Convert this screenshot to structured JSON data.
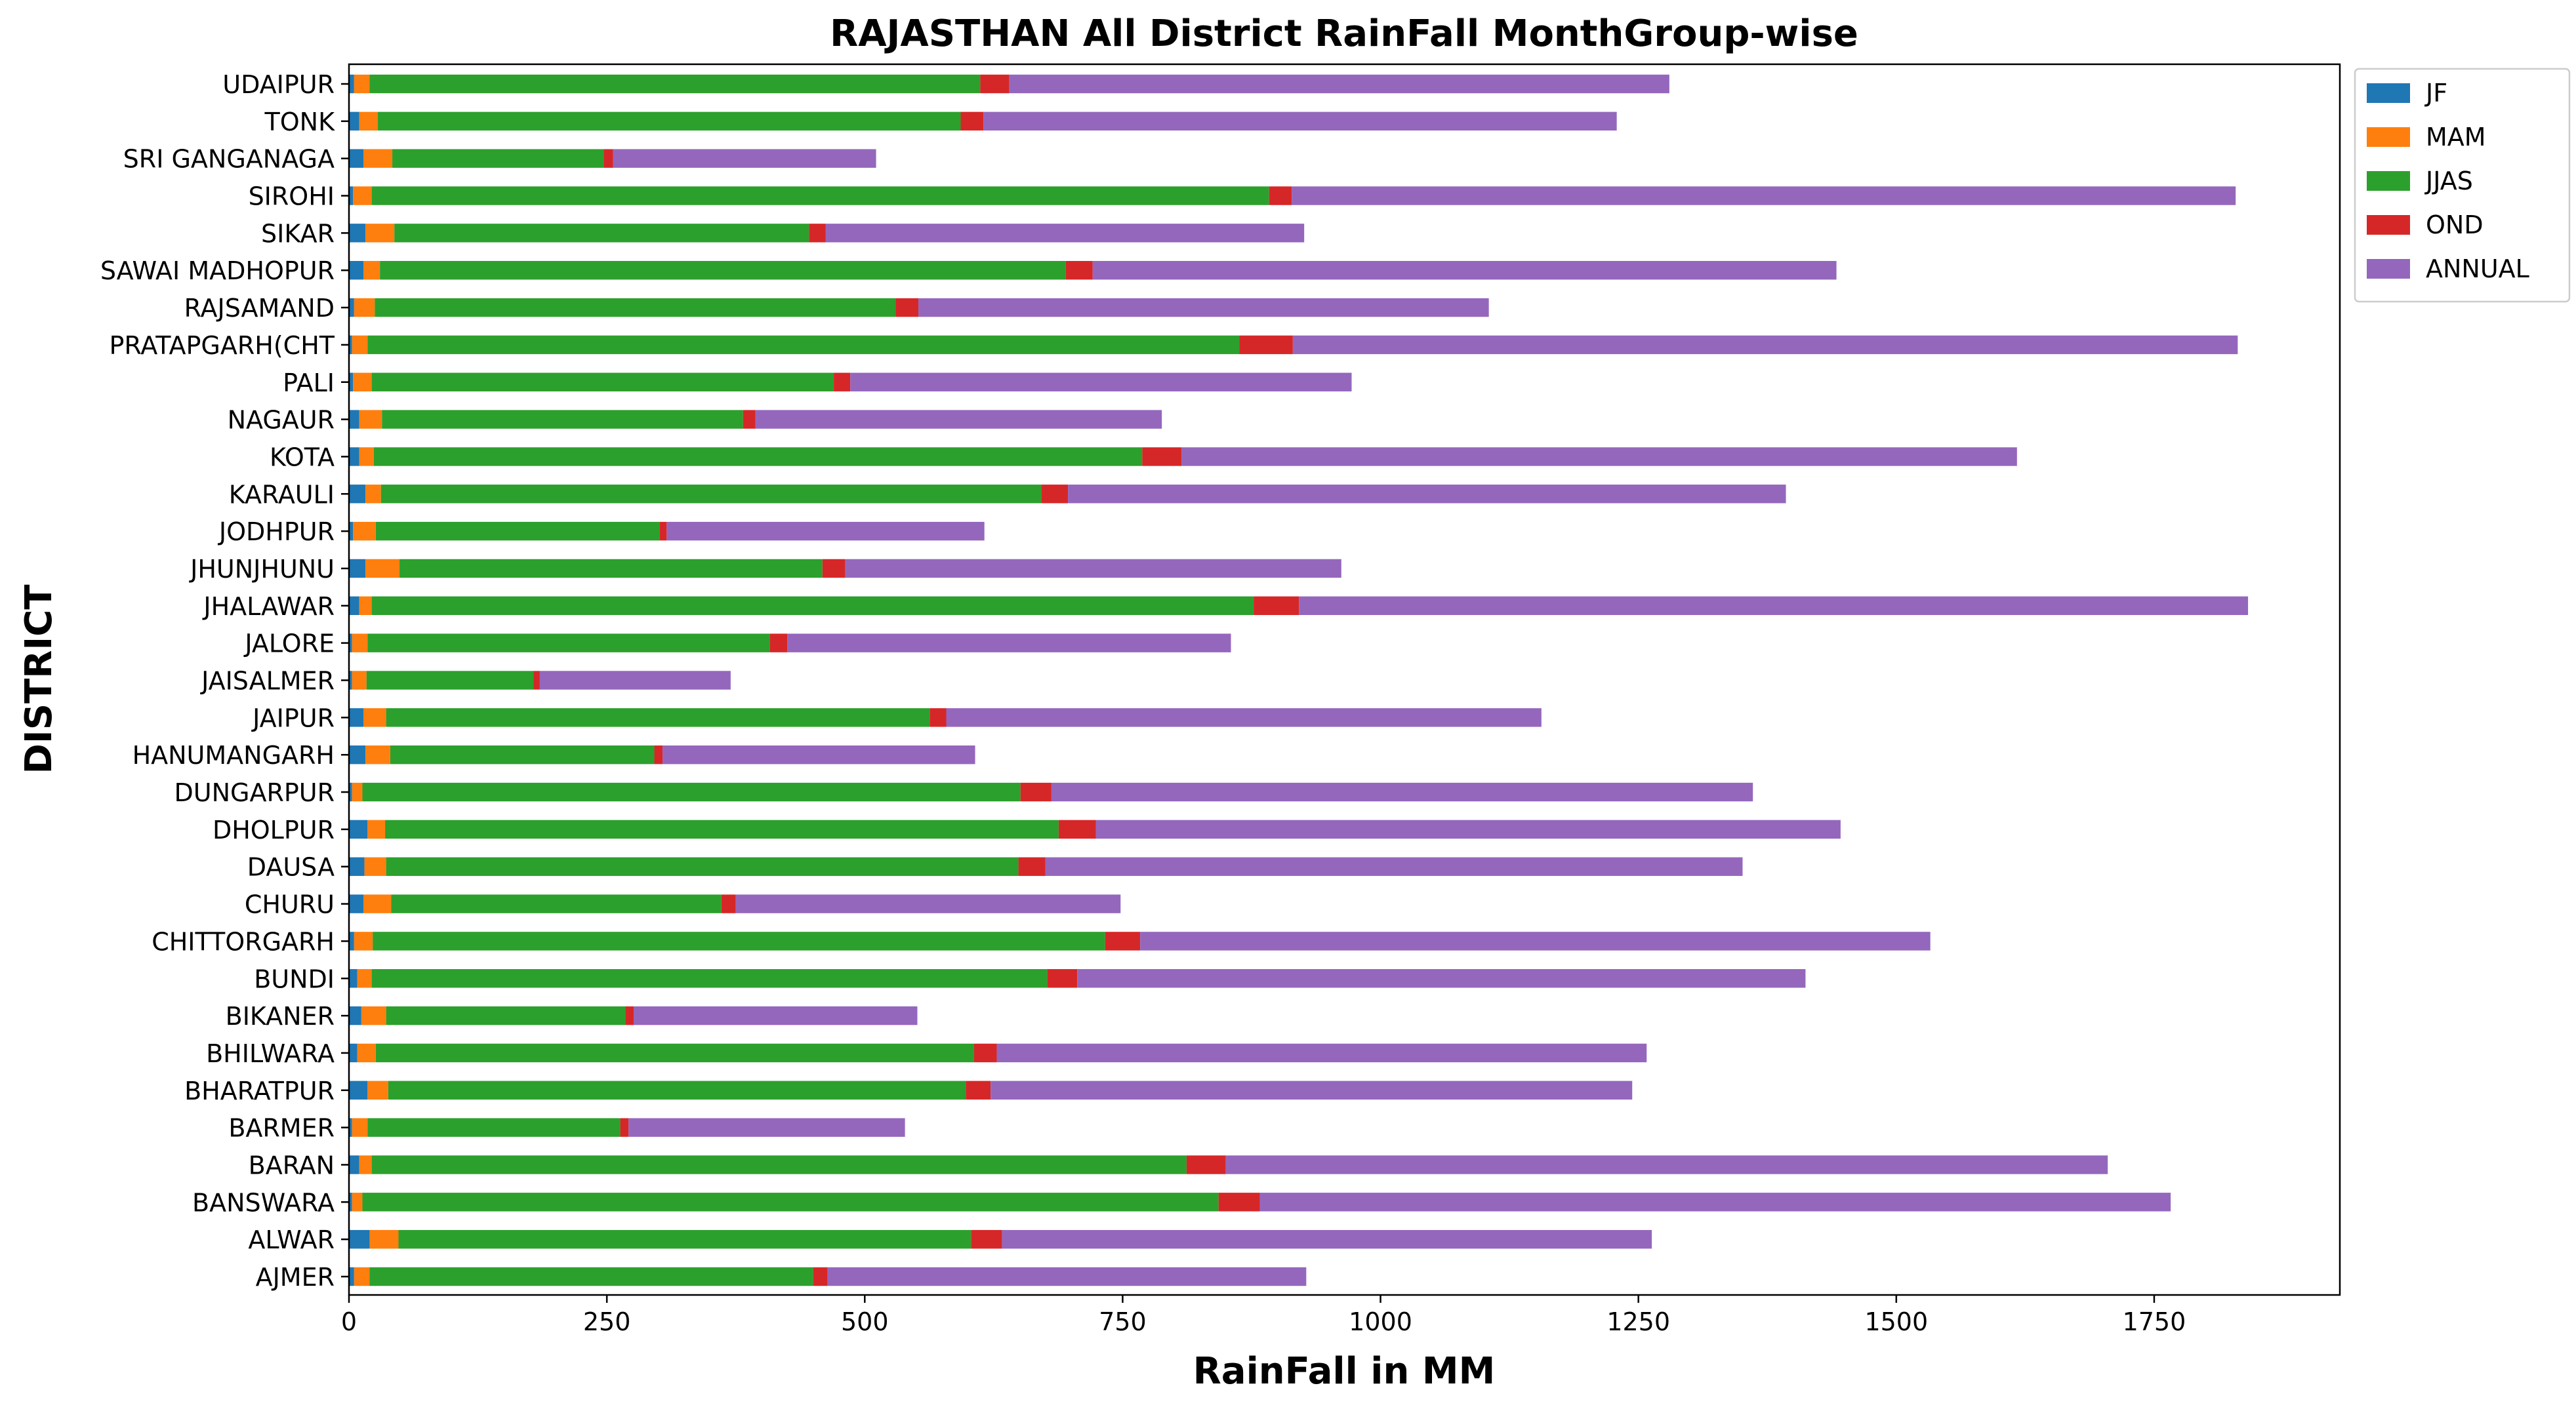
{
  "chart_data": {
    "type": "bar",
    "orientation": "horizontal",
    "stacked": true,
    "title": "RAJASTHAN All District RainFall MonthGroup-wise",
    "xlabel": "RainFall in MM",
    "ylabel": "DISTRICT",
    "xlim": [
      0,
      1930
    ],
    "xticks": [
      "0",
      "250",
      "500",
      "750",
      "1000",
      "1250",
      "1500",
      "1750"
    ],
    "xtick_values": [
      0,
      250,
      500,
      750,
      1000,
      1250,
      1500,
      1750
    ],
    "grid": false,
    "legend_position": "top-right",
    "categories": [
      "AJMER",
      "ALWAR",
      "BANSWARA",
      "BARAN",
      "BARMER",
      "BHARATPUR",
      "BHILWARA",
      "BIKANER",
      "BUNDI",
      "CHITTORGARH",
      "CHURU",
      "DAUSA",
      "DHOLPUR",
      "DUNGARPUR",
      "HANUMANGARH",
      "JAIPUR",
      "JAISALMER",
      "JALORE",
      "JHALAWAR",
      "JHUNJHUNU",
      "JODHPUR",
      "KARAULI",
      "KOTA",
      "NAGAUR",
      "PALI",
      "PRATAPGARH(CHT",
      "RAJSAMAND",
      "SAWAI MADHOPUR",
      "SIKAR",
      "SIROHI",
      "SRI GANGANAGA",
      "TONK",
      "UDAIPUR"
    ],
    "series": [
      {
        "name": "JF",
        "color": "#1f77b4",
        "values": [
          5,
          20,
          3,
          10,
          3,
          18,
          8,
          12,
          8,
          5,
          14,
          15,
          18,
          3,
          16,
          14,
          3,
          3,
          10,
          16,
          4,
          16,
          10,
          10,
          4,
          3,
          5,
          14,
          16,
          4,
          14,
          10,
          5
        ]
      },
      {
        "name": "MAM",
        "color": "#ff7f0e",
        "values": [
          15,
          28,
          10,
          12,
          15,
          20,
          18,
          24,
          14,
          18,
          27,
          21,
          17,
          10,
          24,
          22,
          14,
          15,
          12,
          33,
          22,
          15,
          14,
          22,
          18,
          15,
          20,
          16,
          28,
          18,
          28,
          18,
          15
        ]
      },
      {
        "name": "JJAS",
        "color": "#2ca02c",
        "values": [
          430,
          555,
          830,
          790,
          245,
          560,
          580,
          232,
          655,
          710,
          320,
          613,
          653,
          638,
          256,
          527,
          162,
          390,
          855,
          410,
          275,
          640,
          745,
          350,
          448,
          845,
          505,
          665,
          402,
          870,
          205,
          565,
          592
        ]
      },
      {
        "name": "OND",
        "color": "#d62728",
        "values": [
          14,
          30,
          40,
          38,
          8,
          24,
          22,
          8,
          29,
          34,
          14,
          26,
          36,
          30,
          8,
          16,
          6,
          17,
          44,
          22,
          7,
          26,
          38,
          12,
          16,
          52,
          22,
          26,
          16,
          22,
          9,
          22,
          28
        ]
      },
      {
        "name": "ANNUAL",
        "color": "#9467bd",
        "values": [
          464,
          630,
          883,
          855,
          268,
          622,
          630,
          275,
          706,
          766,
          373,
          676,
          722,
          680,
          303,
          577,
          185,
          430,
          920,
          481,
          308,
          696,
          810,
          394,
          486,
          916,
          553,
          721,
          464,
          915,
          255,
          614,
          640
        ]
      }
    ]
  }
}
